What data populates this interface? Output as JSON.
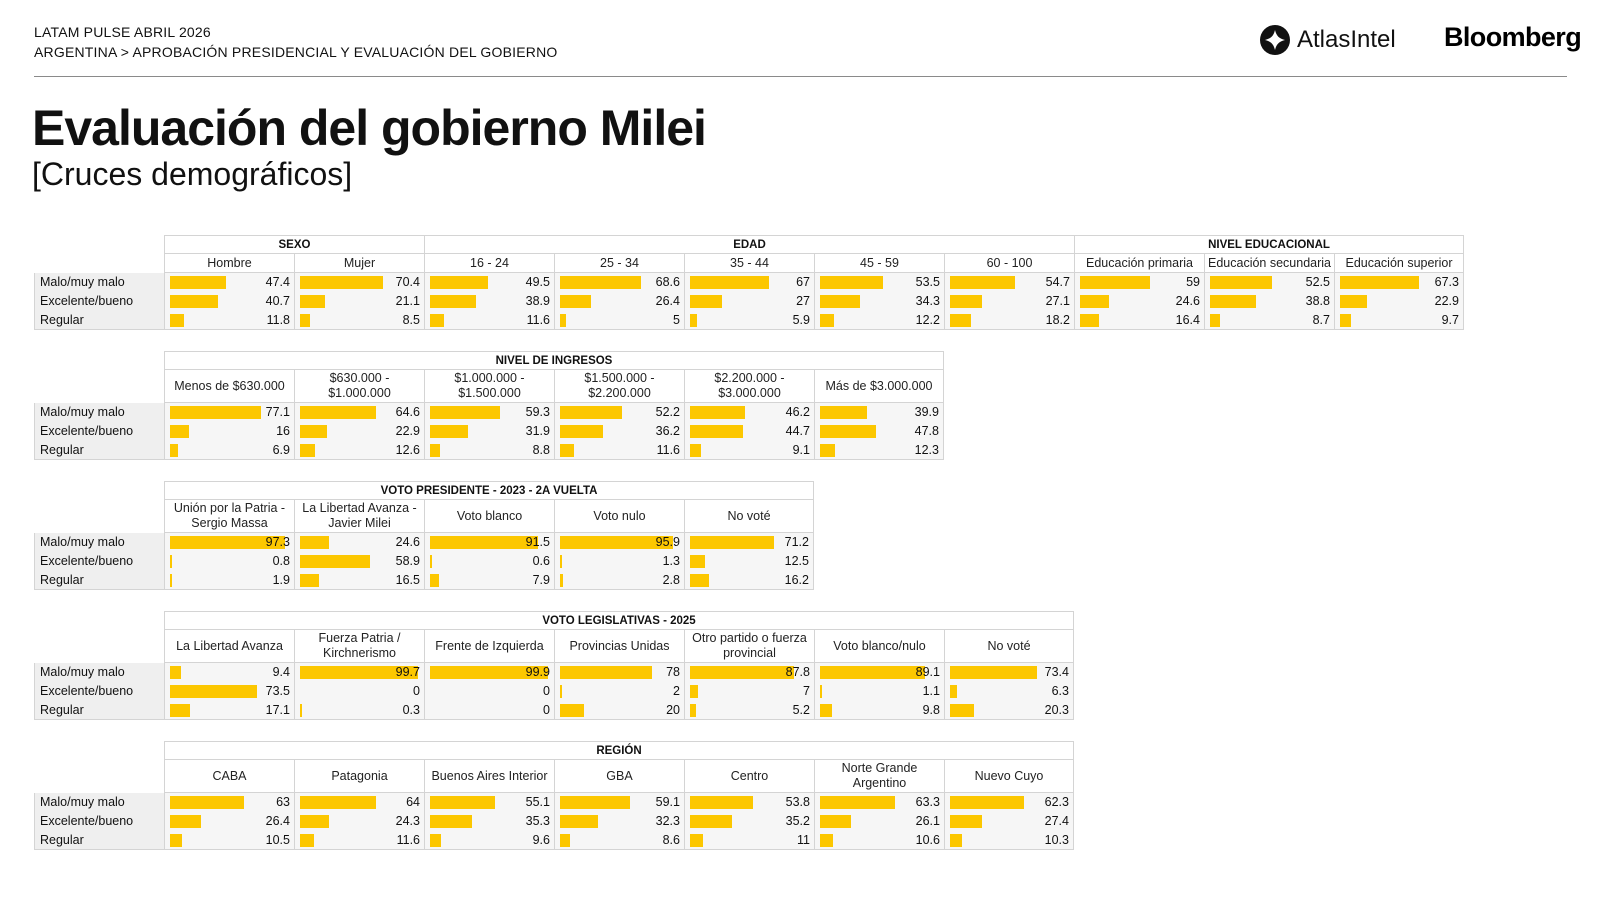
{
  "header": {
    "line1": "LATAM PULSE ABRIL 2026",
    "line2": "ARGENTINA > APROBACIÓN PRESIDENCIAL Y EVALUACIÓN DEL GOBIERNO"
  },
  "logos": {
    "atlas": "AtlasIntel",
    "bloomberg": "Bloomberg"
  },
  "title": "Evaluación del gobierno Milei",
  "subtitle": "[Cruces demográficos]",
  "colors": {
    "bar": "#fcc700",
    "label_bg": "#efefef",
    "cell_bg": "#f6f6f6",
    "border": "#d4d4d4"
  },
  "chart_data": {
    "type": "table",
    "row_labels": [
      "Malo/muy malo",
      "Excelente/bueno",
      "Regular"
    ],
    "sections": [
      {
        "groups": [
          {
            "name": "SEXO",
            "span": 2
          },
          {
            "name": "EDAD",
            "span": 5
          },
          {
            "name": "NIVEL EDUCACIONAL",
            "span": 3
          }
        ],
        "columns": [
          "Hombre",
          "Mujer",
          "16 - 24",
          "25 - 34",
          "35 - 44",
          "45 - 59",
          "60 - 100",
          "Educación primaria",
          "Educación secundaria",
          "Educación superior"
        ],
        "rows": [
          [
            "47.4",
            "70.4",
            "49.5",
            "68.6",
            "67",
            "53.5",
            "54.7",
            "59",
            "52.5",
            "67.3"
          ],
          [
            "40.7",
            "21.1",
            "38.9",
            "26.4",
            "27",
            "34.3",
            "27.1",
            "24.6",
            "38.8",
            "22.9"
          ],
          [
            "11.8",
            "8.5",
            "11.6",
            "5",
            "5.9",
            "12.2",
            "18.2",
            "16.4",
            "8.7",
            "9.7"
          ]
        ]
      },
      {
        "groups": [
          {
            "name": "NIVEL DE INGRESOS",
            "span": 6
          }
        ],
        "columns": [
          "Menos de $630.000",
          "$630.000 - $1.000.000",
          "$1.000.000 - $1.500.000",
          "$1.500.000 - $2.200.000",
          "$2.200.000 - $3.000.000",
          "Más de $3.000.000"
        ],
        "rows": [
          [
            "77.1",
            "64.6",
            "59.3",
            "52.2",
            "46.2",
            "39.9"
          ],
          [
            "16",
            "22.9",
            "31.9",
            "36.2",
            "44.7",
            "47.8"
          ],
          [
            "6.9",
            "12.6",
            "8.8",
            "11.6",
            "9.1",
            "12.3"
          ]
        ]
      },
      {
        "groups": [
          {
            "name": "VOTO PRESIDENTE - 2023 - 2A VUELTA",
            "span": 5
          }
        ],
        "columns": [
          "Unión por la Patria - Sergio Massa",
          "La Libertad Avanza - Javier Milei",
          "Voto blanco",
          "Voto nulo",
          "No voté"
        ],
        "rows": [
          [
            "97.3",
            "24.6",
            "91.5",
            "95.9",
            "71.2"
          ],
          [
            "0.8",
            "58.9",
            "0.6",
            "1.3",
            "12.5"
          ],
          [
            "1.9",
            "16.5",
            "7.9",
            "2.8",
            "16.2"
          ]
        ]
      },
      {
        "groups": [
          {
            "name": "VOTO LEGISLATIVAS - 2025",
            "span": 7
          }
        ],
        "columns": [
          "La Libertad Avanza",
          "Fuerza Patria / Kirchnerismo",
          "Frente de Izquierda",
          "Provincias Unidas",
          "Otro partido o fuerza provincial",
          "Voto blanco/nulo",
          "No voté"
        ],
        "rows": [
          [
            "9.4",
            "99.7",
            "99.9",
            "78",
            "87.8",
            "89.1",
            "73.4"
          ],
          [
            "73.5",
            "0",
            "0",
            "2",
            "7",
            "1.1",
            "6.3"
          ],
          [
            "17.1",
            "0.3",
            "0",
            "20",
            "5.2",
            "9.8",
            "20.3"
          ]
        ]
      },
      {
        "groups": [
          {
            "name": "REGIÓN",
            "span": 7
          }
        ],
        "columns": [
          "CABA",
          "Patagonia",
          "Buenos Aires Interior",
          "GBA",
          "Centro",
          "Norte Grande Argentino",
          "Nuevo Cuyo"
        ],
        "rows": [
          [
            "63",
            "64",
            "55.1",
            "59.1",
            "53.8",
            "63.3",
            "62.3"
          ],
          [
            "26.4",
            "24.3",
            "35.3",
            "32.3",
            "35.2",
            "26.1",
            "27.4"
          ],
          [
            "10.5",
            "11.6",
            "9.6",
            "8.6",
            "11",
            "10.6",
            "10.3"
          ]
        ]
      }
    ]
  }
}
